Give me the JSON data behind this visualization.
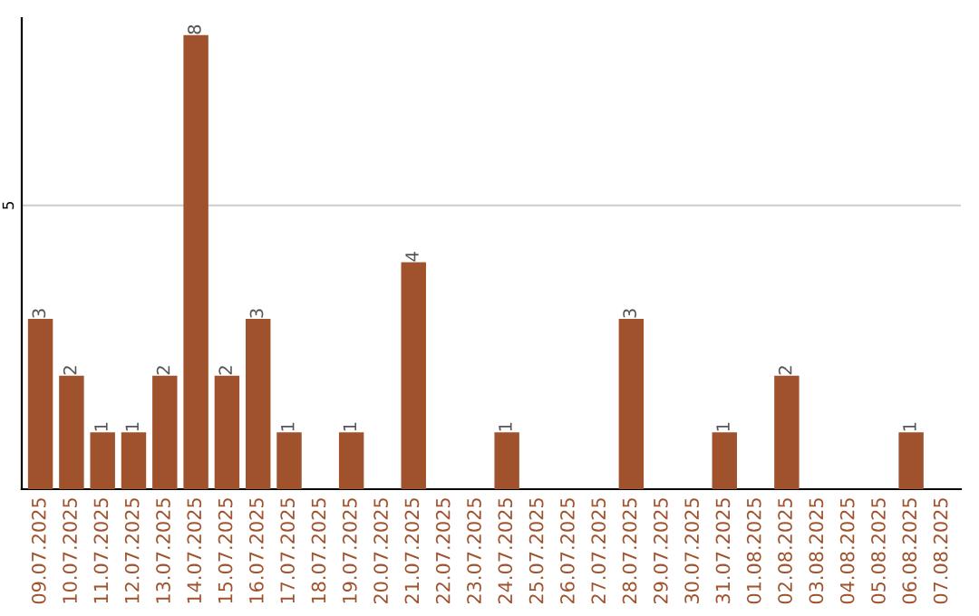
{
  "chart_data": {
    "type": "bar",
    "categories": [
      "09.07.2025",
      "10.07.2025",
      "11.07.2025",
      "12.07.2025",
      "13.07.2025",
      "14.07.2025",
      "15.07.2025",
      "16.07.2025",
      "17.07.2025",
      "18.07.2025",
      "19.07.2025",
      "20.07.2025",
      "21.07.2025",
      "22.07.2025",
      "23.07.2025",
      "24.07.2025",
      "25.07.2025",
      "26.07.2025",
      "27.07.2025",
      "28.07.2025",
      "29.07.2025",
      "30.07.2025",
      "31.07.2025",
      "01.08.2025",
      "02.08.2025",
      "03.08.2025",
      "04.08.2025",
      "05.08.2025",
      "06.08.2025",
      "07.08.2025"
    ],
    "values": [
      3,
      2,
      1,
      1,
      2,
      8,
      2,
      3,
      1,
      0,
      1,
      0,
      4,
      0,
      0,
      1,
      0,
      0,
      0,
      3,
      0,
      0,
      1,
      0,
      2,
      0,
      0,
      0,
      1,
      0
    ],
    "value_labels": [
      "3",
      "2",
      "1",
      "1",
      "2",
      "8",
      "2",
      "3",
      "1",
      null,
      "1",
      null,
      "4",
      null,
      null,
      "1",
      null,
      null,
      null,
      "3",
      null,
      null,
      "1",
      null,
      "2",
      null,
      null,
      null,
      "1",
      null
    ],
    "color": "#a0522d",
    "ylim": [
      0,
      8.3
    ],
    "yticks": [
      5
    ],
    "grid": "y",
    "legend": false
  }
}
